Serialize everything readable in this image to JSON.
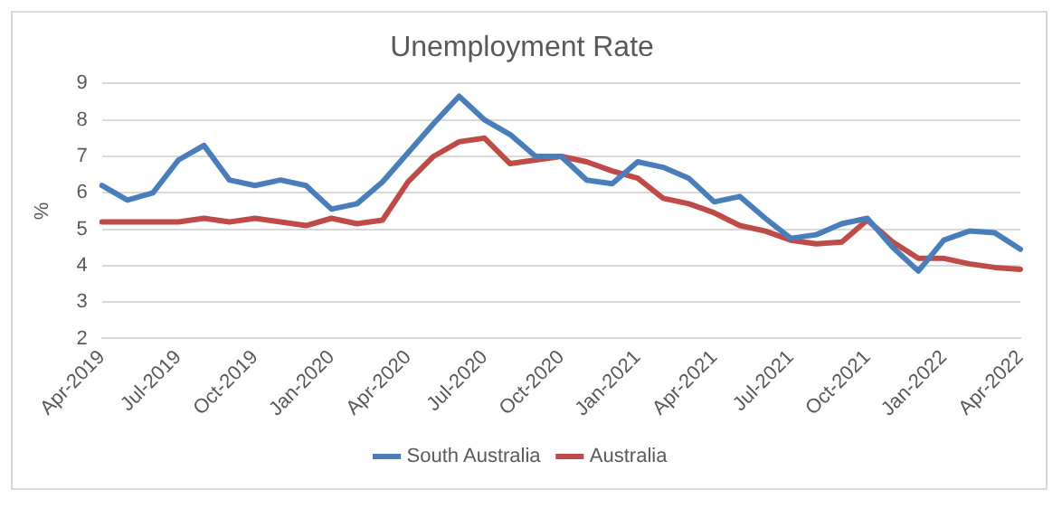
{
  "chart_data": {
    "type": "line",
    "title": "Unemployment Rate",
    "ylabel": "%",
    "categories": [
      "Apr-2019",
      null,
      null,
      "Jul-2019",
      null,
      null,
      "Oct-2019",
      null,
      null,
      "Jan-2020",
      null,
      null,
      "Apr-2020",
      null,
      null,
      "Jul-2020",
      null,
      null,
      "Oct-2020",
      null,
      null,
      "Jan-2021",
      null,
      null,
      "Apr-2021",
      null,
      null,
      "Jul-2021",
      null,
      null,
      "Oct-2021",
      null,
      null,
      "Jan-2022",
      null,
      null,
      "Apr-2022"
    ],
    "series": [
      {
        "name": "South Australia",
        "color": "#4a7ebb",
        "values": [
          6.2,
          5.8,
          6.0,
          6.9,
          7.3,
          6.35,
          6.2,
          6.35,
          6.2,
          5.55,
          5.7,
          6.3,
          7.1,
          7.9,
          8.65,
          8.0,
          7.6,
          7.0,
          7.0,
          6.35,
          6.25,
          6.85,
          6.7,
          6.4,
          5.75,
          5.9,
          5.3,
          4.75,
          4.85,
          5.15,
          5.3,
          4.5,
          3.85,
          4.7,
          4.95,
          4.9,
          4.45
        ]
      },
      {
        "name": "Australia",
        "color": "#be4b48",
        "values": [
          5.2,
          5.2,
          5.2,
          5.2,
          5.3,
          5.2,
          5.3,
          5.2,
          5.1,
          5.3,
          5.15,
          5.25,
          6.3,
          7.0,
          7.4,
          7.5,
          6.8,
          6.9,
          7.0,
          6.85,
          6.6,
          6.4,
          5.85,
          5.7,
          5.45,
          5.1,
          4.95,
          4.7,
          4.6,
          4.65,
          5.25,
          4.65,
          4.2,
          4.2,
          4.05,
          3.95,
          3.9
        ]
      }
    ],
    "ylim": [
      2,
      9
    ],
    "yticks": [
      2,
      3,
      4,
      5,
      6,
      7,
      8,
      9
    ],
    "grid": "y",
    "legend": "bottom",
    "marker": "none",
    "line_style": "solid"
  }
}
